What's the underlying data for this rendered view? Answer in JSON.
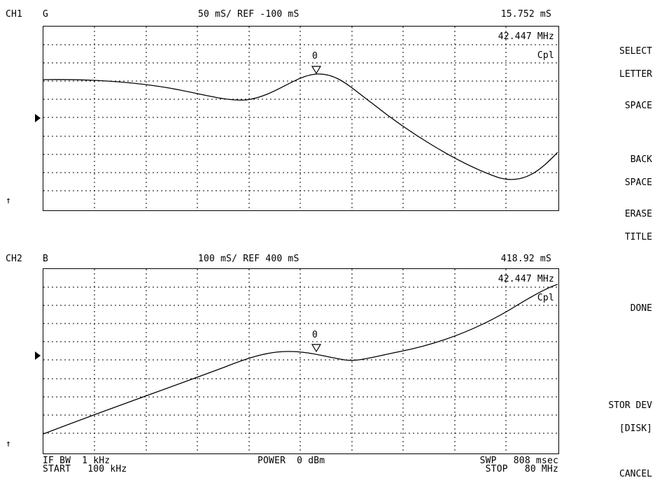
{
  "ch1": {
    "channel": "CH1",
    "param": "G",
    "scale": "50 mS/ REF -100 mS",
    "marker_value": "15.752 mS",
    "marker_freq": "42.447 MHz",
    "mode": "Cpl",
    "marker_label": "0"
  },
  "ch2": {
    "channel": "CH2",
    "param": "B",
    "scale": "100 mS/ REF 400 mS",
    "marker_value": "418.92 mS",
    "marker_freq": "42.447 MHz",
    "mode": "Cpl",
    "marker_label": "0"
  },
  "footer": {
    "if_bw": "IF BW  1 kHz",
    "start": "START   100 kHz",
    "power": "POWER  0 dBm",
    "swp": "SWP   808 msec",
    "stop": "STOP   80 MHz"
  },
  "softkeys": [
    {
      "line1": "SELECT",
      "line2": "LETTER"
    },
    {
      "line1": "SPACE",
      "line2": ""
    },
    {
      "line1": "BACK",
      "line2": "SPACE"
    },
    {
      "line1": "ERASE",
      "line2": "TITLE"
    },
    {
      "line1": "DONE",
      "line2": ""
    },
    {
      "line1": "STOR DEV",
      "line2": "[DISK]"
    },
    {
      "line1": "CANCEL",
      "line2": ""
    }
  ],
  "icons": {
    "ref_marker": "triangle-right-icon",
    "scale_ref": "up-arrow-icon",
    "marker": "triangle-down-icon"
  },
  "glyphs": {
    "up_arrow": "↑"
  }
}
